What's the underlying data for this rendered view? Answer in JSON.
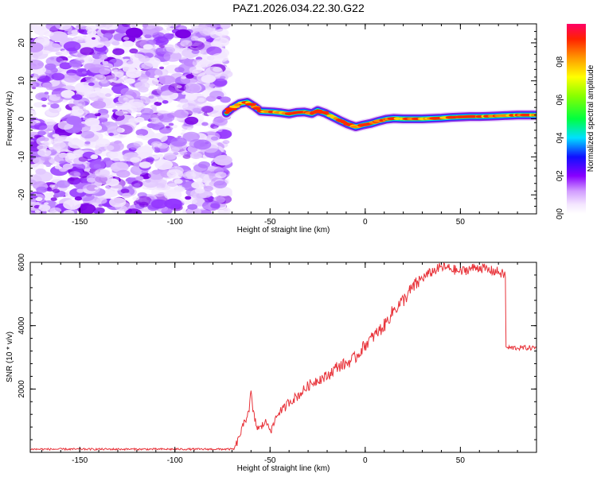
{
  "title": "PAZ1.2026.034.22.30.G22",
  "colors": {
    "signal": "#e8333a",
    "axis": "#000000"
  },
  "chart_data": [
    {
      "type": "heatmap",
      "name": "spectrogram",
      "xlabel": "Height of straight line (km)",
      "ylabel": "Frequency (Hz)",
      "xlim": [
        -176,
        90
      ],
      "ylim": [
        -25,
        25
      ],
      "xticks": [
        -150,
        -100,
        -50,
        0,
        50
      ],
      "xtick_labels": [
        "-150",
        "-100",
        "-50",
        "0",
        "50"
      ],
      "yticks": [
        -20,
        -10,
        0,
        10,
        20
      ],
      "ytick_labels": [
        "-20",
        "-10",
        "0",
        "10",
        "20"
      ],
      "noise_region_x": [
        -176,
        -73
      ],
      "ridge": {
        "x": [
          -73,
          -70,
          -66,
          -62,
          -58,
          -55,
          -52,
          -48,
          -44,
          -40,
          -36,
          -32,
          -28,
          -25,
          -21,
          -17,
          -13,
          -9,
          -5,
          -1,
          3,
          7,
          11,
          15,
          20,
          25,
          30,
          35,
          40,
          45,
          50,
          55,
          60,
          65,
          70,
          75,
          80,
          85,
          90
        ],
        "y": [
          1.5,
          2.8,
          4.0,
          4.4,
          3.2,
          2.0,
          1.9,
          1.8,
          1.6,
          1.3,
          1.7,
          1.8,
          1.4,
          2.2,
          1.5,
          0.5,
          -0.5,
          -1.4,
          -2.1,
          -1.6,
          -1.2,
          -0.6,
          -0.1,
          0.1,
          0.0,
          0.0,
          0.0,
          0.1,
          0.2,
          0.4,
          0.5,
          0.6,
          0.6,
          0.7,
          0.8,
          0.9,
          1.0,
          1.0,
          1.0
        ]
      },
      "colorbar": {
        "label": "Normalized spectral amplitude",
        "range": [
          0,
          1
        ],
        "ticks": [
          0.0,
          0.2,
          0.4,
          0.6,
          0.8
        ],
        "tick_labels": [
          "0.0",
          "0.2",
          "0.4",
          "0.6",
          "0.8"
        ]
      }
    },
    {
      "type": "line",
      "name": "snr",
      "xlabel": "Height of straight line (km)",
      "ylabel": "SNR (10 * v/v)",
      "xlim": [
        -176,
        90
      ],
      "ylim": [
        0,
        6000
      ],
      "xticks": [
        -150,
        -100,
        -50,
        0,
        50
      ],
      "xtick_labels": [
        "-150",
        "-100",
        "-50",
        "0",
        "50"
      ],
      "yticks": [
        2000,
        4000,
        6000
      ],
      "ytick_labels": [
        "2000",
        "4000",
        "6000"
      ],
      "series": [
        {
          "name": "SNR",
          "x": [
            -176,
            -160,
            -140,
            -120,
            -100,
            -80,
            -69,
            -67,
            -65,
            -63,
            -61,
            -60,
            -59,
            -57,
            -55,
            -53,
            -51,
            -49,
            -47,
            -45,
            -43,
            -40,
            -35,
            -30,
            -25,
            -20,
            -15,
            -10,
            -5,
            0,
            5,
            10,
            15,
            20,
            25,
            30,
            35,
            40,
            45,
            50,
            55,
            60,
            65,
            70,
            73,
            74,
            76,
            80,
            85,
            90
          ],
          "y": [
            100,
            100,
            100,
            100,
            100,
            100,
            100,
            350,
            700,
            1000,
            1400,
            1900,
            1300,
            800,
            750,
            950,
            900,
            700,
            1100,
            1300,
            1350,
            1600,
            1800,
            2100,
            2300,
            2400,
            2700,
            2800,
            3000,
            3400,
            3700,
            4000,
            4500,
            4800,
            5200,
            5500,
            5700,
            5850,
            5800,
            5700,
            5800,
            5850,
            5750,
            5700,
            5600,
            3300,
            3300,
            3300,
            3300,
            3300
          ]
        }
      ]
    }
  ]
}
